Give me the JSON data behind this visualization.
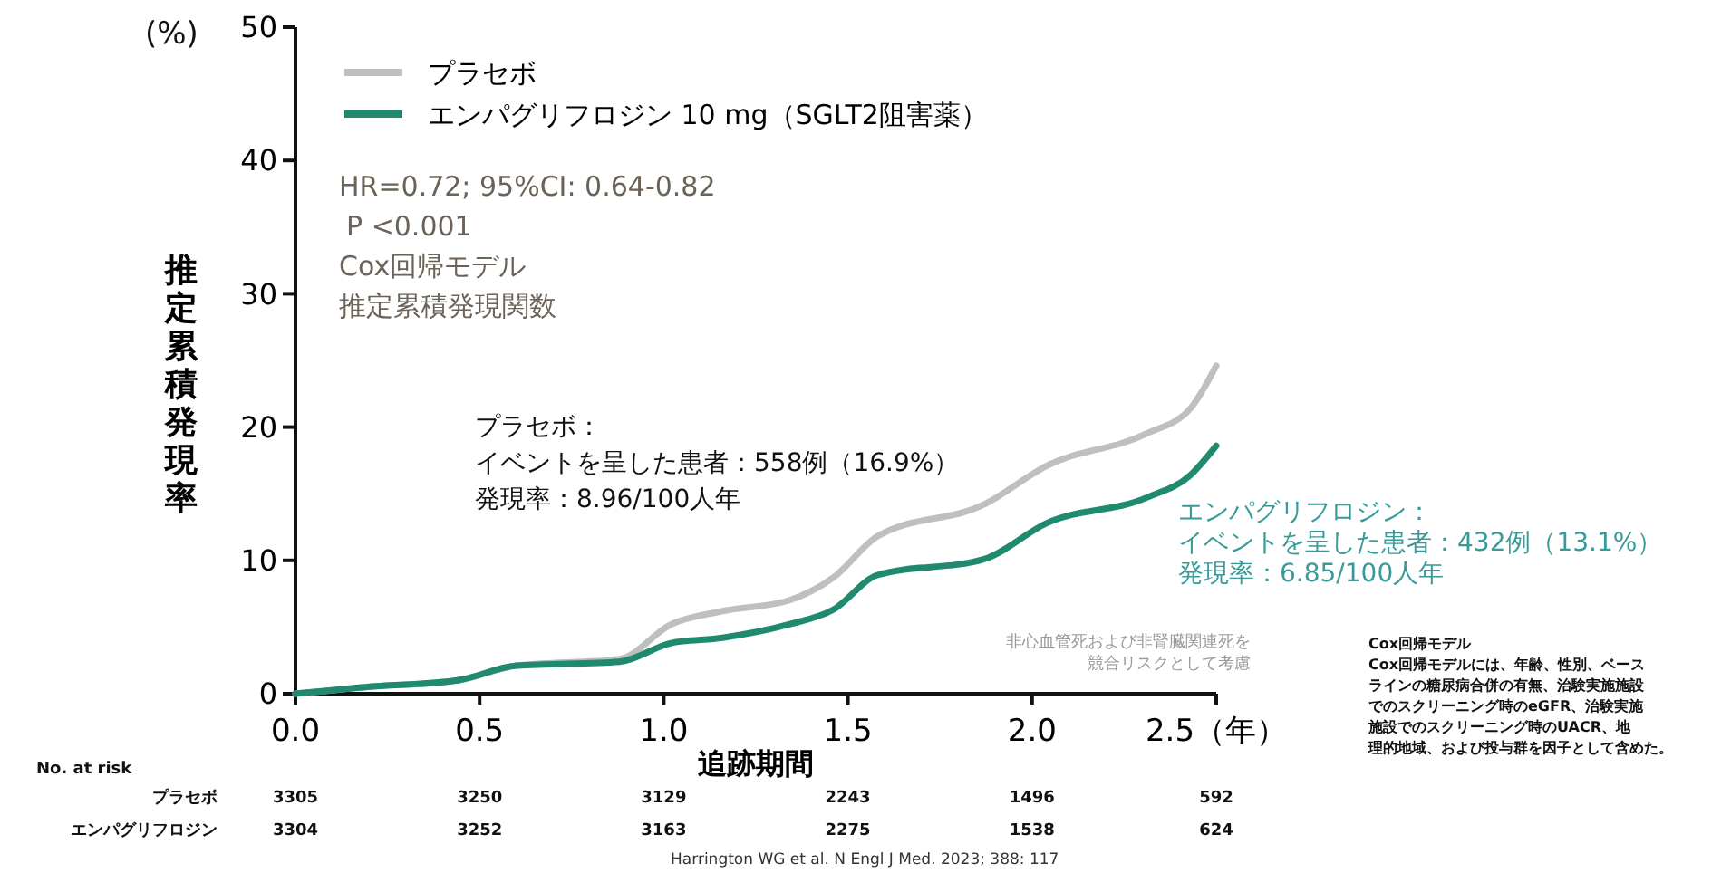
{
  "chart_data": {
    "type": "line",
    "ylabel": "推定累積発現率",
    "xlabel": "追跡期間",
    "xlim": [
      0,
      2.5
    ],
    "ylim": [
      0,
      50
    ],
    "xticks": [
      {
        "value": 0,
        "label": "0.0"
      },
      0.5,
      {
        "value": 1,
        "label": "1.0"
      },
      1.5,
      {
        "value": 2,
        "label": "2.0"
      },
      {
        "value": 2.5,
        "label": "2.5（年）"
      }
    ],
    "yticks": [
      0,
      10,
      20,
      30,
      40,
      50
    ],
    "legend": "top left",
    "series": [
      {
        "name": "プラセボ",
        "color": "#bfbfbf",
        "x": [
          0,
          0.19,
          0.44,
          0.6,
          0.88,
          1.02,
          1.16,
          1.34,
          1.46,
          1.58,
          1.87,
          2.04,
          2.31,
          2.43,
          2.5
        ],
        "values": [
          0,
          0.5,
          1.0,
          2.1,
          2.6,
          5.2,
          6.2,
          7.0,
          8.7,
          11.8,
          14.2,
          17.1,
          19.5,
          21.4,
          24.6
        ]
      },
      {
        "name": "エンパグリフロジン 10 mg（SGLT2阻害薬）",
        "color": "#1f8a70",
        "x": [
          0,
          0.19,
          0.44,
          0.6,
          0.88,
          1.02,
          1.16,
          1.34,
          1.46,
          1.58,
          1.87,
          2.04,
          2.31,
          2.43,
          2.5
        ],
        "values": [
          0,
          0.5,
          1.0,
          2.1,
          2.4,
          3.8,
          4.2,
          5.2,
          6.3,
          8.9,
          10.1,
          12.8,
          14.7,
          16.4,
          18.6
        ]
      }
    ],
    "annotations": [
      "HR=0.72; 95%CI: 0.64-0.82",
      "P <0.001",
      "Cox回帰モデル",
      "推定累積発現関数",
      "プラセボ：イベントを呈した患者：558例（16.9%）発現率：8.96/100人年",
      "エンパグリフロジン：イベントを呈した患者：432例（13.1%）発現率：6.85/100人年",
      "非心血管死および非腎臓関連死を競合リスクとして考慮",
      "Cox回帰モデル",
      "Cox回帰モデルには、年齢、性別、ベースラインの糖尿病合併の有無、治験実施施設でのスクリーニング時のeGFR、治験実施施設でのスクリーニング時のUACR、地理的地域、および投与群を因子として含めた。",
      "Harrington WG et al. N Engl J Med. 2023; 388: 117",
      "(%)",
      "No. at risk",
      "プラセボ",
      "3305",
      "3250",
      "3129",
      "2243",
      "1496",
      "592",
      "エンパグリフロジン",
      "3304",
      "3252",
      "3163",
      "2275",
      "1538",
      "624"
    ]
  }
}
